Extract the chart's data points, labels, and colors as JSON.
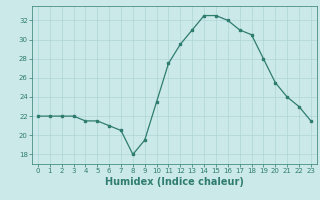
{
  "x": [
    0,
    1,
    2,
    3,
    4,
    5,
    6,
    7,
    8,
    9,
    10,
    11,
    12,
    13,
    14,
    15,
    16,
    17,
    18,
    19,
    20,
    21,
    22,
    23
  ],
  "y": [
    22,
    22,
    22,
    22,
    21.5,
    21.5,
    21,
    20.5,
    18,
    19.5,
    23.5,
    27.5,
    29.5,
    31,
    32.5,
    32.5,
    32,
    31,
    30.5,
    28,
    25.5,
    24,
    23,
    21.5
  ],
  "line_color": "#2e7d6e",
  "marker": "s",
  "marker_size": 2,
  "bg_color": "#cce9e9",
  "grid_color": "#aed4d4",
  "axis_color": "#2e7d6e",
  "xlabel": "Humidex (Indice chaleur)",
  "xlabel_fontsize": 7,
  "xlim": [
    -0.5,
    23.5
  ],
  "ylim": [
    17,
    33.5
  ],
  "yticks": [
    18,
    20,
    22,
    24,
    26,
    28,
    30,
    32
  ],
  "xticks": [
    0,
    1,
    2,
    3,
    4,
    5,
    6,
    7,
    8,
    9,
    10,
    11,
    12,
    13,
    14,
    15,
    16,
    17,
    18,
    19,
    20,
    21,
    22,
    23
  ]
}
